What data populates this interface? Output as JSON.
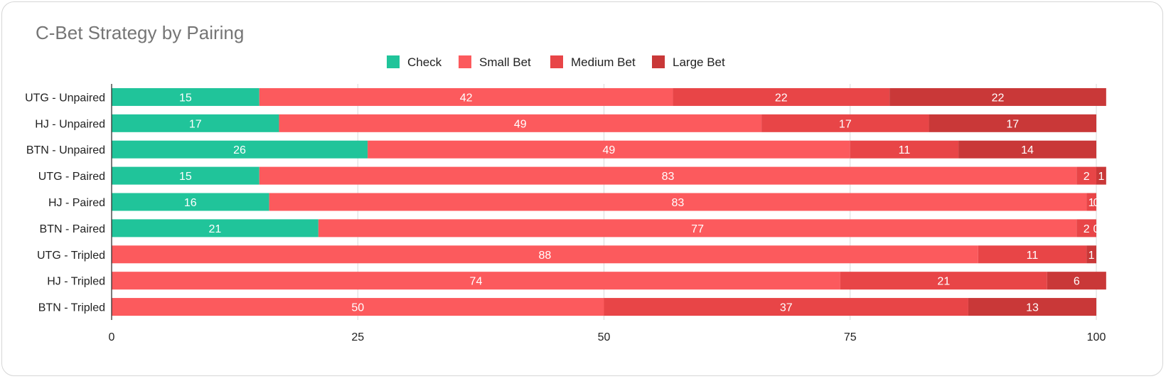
{
  "colors": {
    "check": "#20c49a",
    "small": "#fc5a5d",
    "medium": "#e84547",
    "large": "#c93838",
    "grid": "#d9d9d9",
    "axis": "#333333"
  },
  "chart_data": {
    "type": "bar",
    "orientation": "horizontal",
    "stacked": true,
    "title": "C-Bet Strategy by Pairing",
    "xlim": [
      0,
      100
    ],
    "xticks": [
      0,
      25,
      50,
      75,
      100
    ],
    "grid": true,
    "legend_position": "top-center",
    "categories": [
      "UTG - Unpaired",
      "HJ - Unpaired",
      "BTN - Unpaired",
      "UTG - Paired",
      "HJ - Paired",
      "BTN - Paired",
      "UTG - Tripled",
      "HJ - Tripled",
      "BTN - Tripled"
    ],
    "series": [
      {
        "name": "Check",
        "color": "#20c49a",
        "values": [
          15,
          17,
          26,
          15,
          16,
          21,
          0,
          0,
          0
        ]
      },
      {
        "name": "Small Bet",
        "color": "#fc5a5d",
        "values": [
          42,
          49,
          49,
          83,
          83,
          77,
          88,
          74,
          50
        ]
      },
      {
        "name": "Medium Bet",
        "color": "#e84547",
        "values": [
          22,
          17,
          11,
          2,
          1,
          2,
          11,
          21,
          37
        ]
      },
      {
        "name": "Large Bet",
        "color": "#c93838",
        "values": [
          22,
          17,
          14,
          1,
          0,
          0,
          1,
          6,
          13
        ]
      }
    ]
  }
}
